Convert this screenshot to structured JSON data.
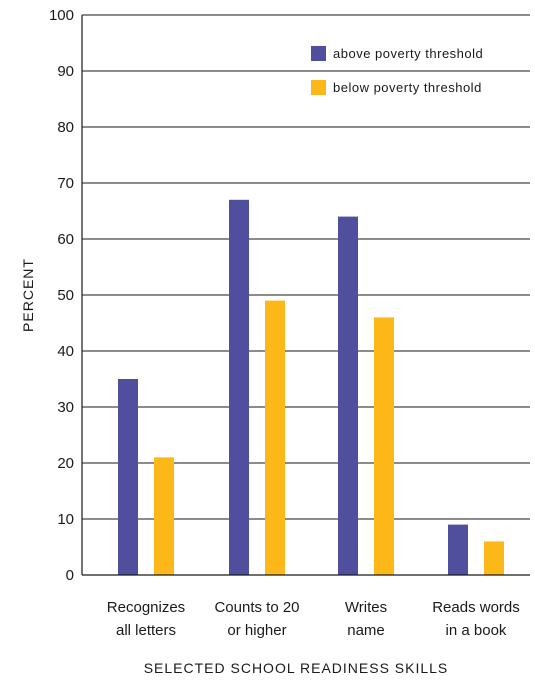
{
  "chart_data": {
    "type": "bar",
    "categories": [
      [
        "Recognizes",
        "all letters"
      ],
      [
        "Counts to 20",
        "or higher"
      ],
      [
        "Writes",
        "name"
      ],
      [
        "Reads words",
        "in a book"
      ]
    ],
    "series": [
      {
        "name": "above poverty threshold",
        "color": "#4f4f9e",
        "values": [
          35,
          67,
          64,
          9
        ]
      },
      {
        "name": "below poverty threshold",
        "color": "#fbb818",
        "values": [
          21,
          49,
          46,
          6
        ]
      }
    ],
    "title": "",
    "xlabel": "SELECTED SCHOOL READINESS SKILLS",
    "ylabel": "PERCENT",
    "ylim": [
      0,
      100
    ],
    "yticks": [
      0,
      10,
      20,
      30,
      40,
      50,
      60,
      70,
      80,
      90,
      100
    ],
    "grid": true,
    "legend_position": "top-right"
  }
}
